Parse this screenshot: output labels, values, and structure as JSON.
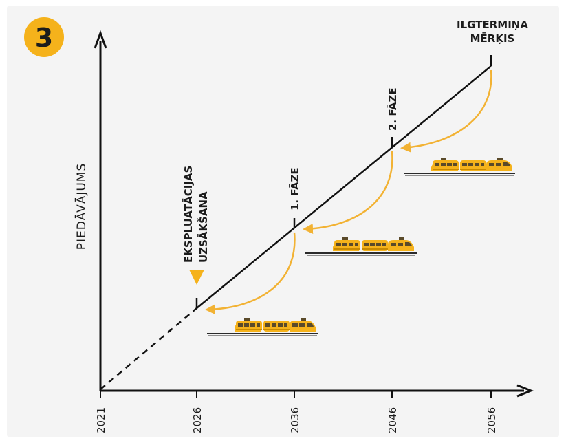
{
  "badge": {
    "number": "3"
  },
  "y_axis_label": "PIEDĀVĀJUMS",
  "x_ticks": [
    "2021",
    "2026",
    "2036",
    "2046",
    "2056"
  ],
  "milestones": {
    "start_line1": "EKSPLUATĀCIJAS",
    "start_line2": "UZSĀKŠANA",
    "phase1": "1. FĀZE",
    "phase2": "2. FĀZE",
    "goal_line1": "ILGTERMIŅA",
    "goal_line2": "MĒRĶIS"
  },
  "colors": {
    "accent": "#f5b21b",
    "arrow": "#f2b233",
    "train_body": "#f5b21b",
    "line": "#111111",
    "background": "#f4f4f4"
  },
  "icons": [
    "train-icon",
    "marker-triangle-icon",
    "curved-arrow-icon"
  ]
}
